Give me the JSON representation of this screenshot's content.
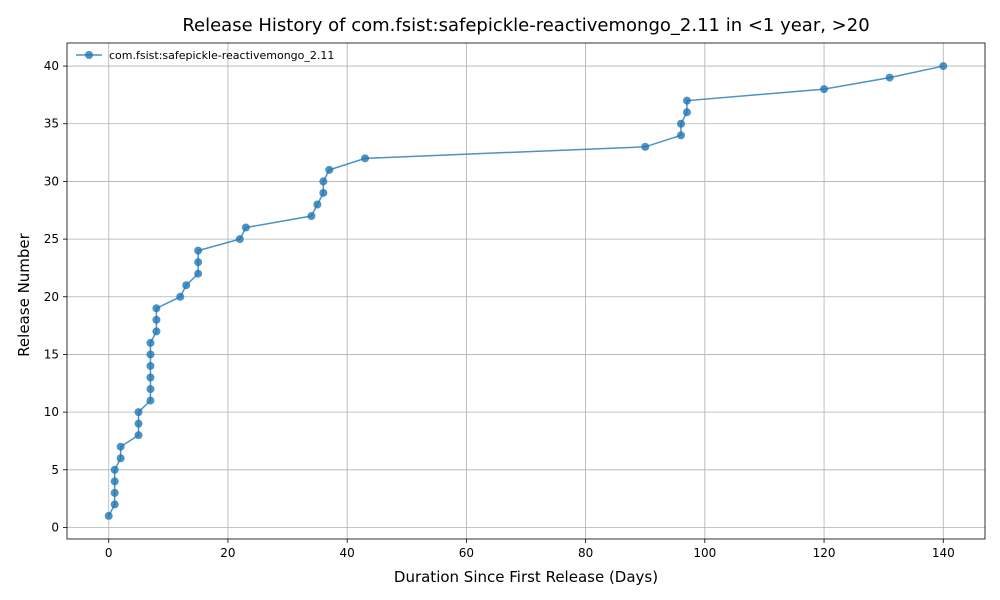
{
  "chart_data": {
    "type": "line",
    "title": "Release History of com.fsist:safepickle-reactivemongo_2.11 in <1 year, >20",
    "xlabel": "Duration Since First Release (Days)",
    "ylabel": "Release Number",
    "xlim": [
      -7,
      147
    ],
    "ylim": [
      -1,
      42
    ],
    "xticks": [
      0,
      20,
      40,
      60,
      80,
      100,
      120,
      140
    ],
    "yticks": [
      0,
      5,
      10,
      15,
      20,
      25,
      30,
      35,
      40
    ],
    "grid": true,
    "legend_position": "top-left",
    "series": [
      {
        "name": "com.fsist:safepickle-reactivemongo_2.11",
        "color": "#1f77b4",
        "marker": "circle",
        "x": [
          0,
          1,
          1,
          1,
          1,
          2,
          2,
          5,
          5,
          5,
          7,
          7,
          7,
          7,
          7,
          7,
          8,
          8,
          8,
          12,
          13,
          15,
          15,
          15,
          22,
          23,
          34,
          35,
          36,
          36,
          37,
          43,
          90,
          96,
          96,
          97,
          97,
          120,
          131,
          140
        ],
        "y": [
          1,
          2,
          3,
          4,
          5,
          6,
          7,
          8,
          9,
          10,
          11,
          12,
          13,
          14,
          15,
          16,
          17,
          18,
          19,
          20,
          21,
          22,
          23,
          24,
          25,
          26,
          27,
          28,
          29,
          30,
          31,
          32,
          33,
          34,
          35,
          36,
          37,
          38,
          39,
          40
        ]
      }
    ]
  }
}
